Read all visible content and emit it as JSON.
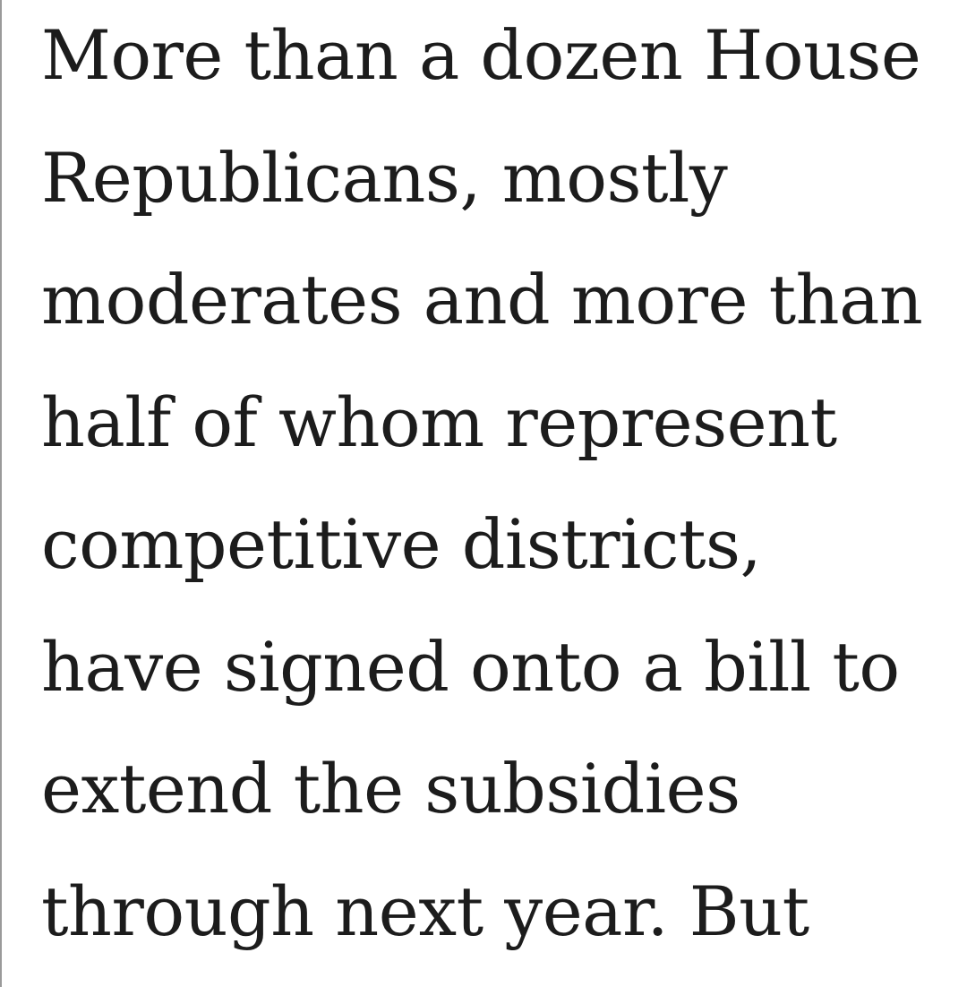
{
  "paragraph": {
    "lines": [
      "More than a dozen House",
      "Republicans, mostly",
      "moderates and more than",
      "half of whom represent",
      "competitive districts,",
      "have signed onto a bill to",
      "extend the subsidies",
      "through next year. But"
    ]
  }
}
